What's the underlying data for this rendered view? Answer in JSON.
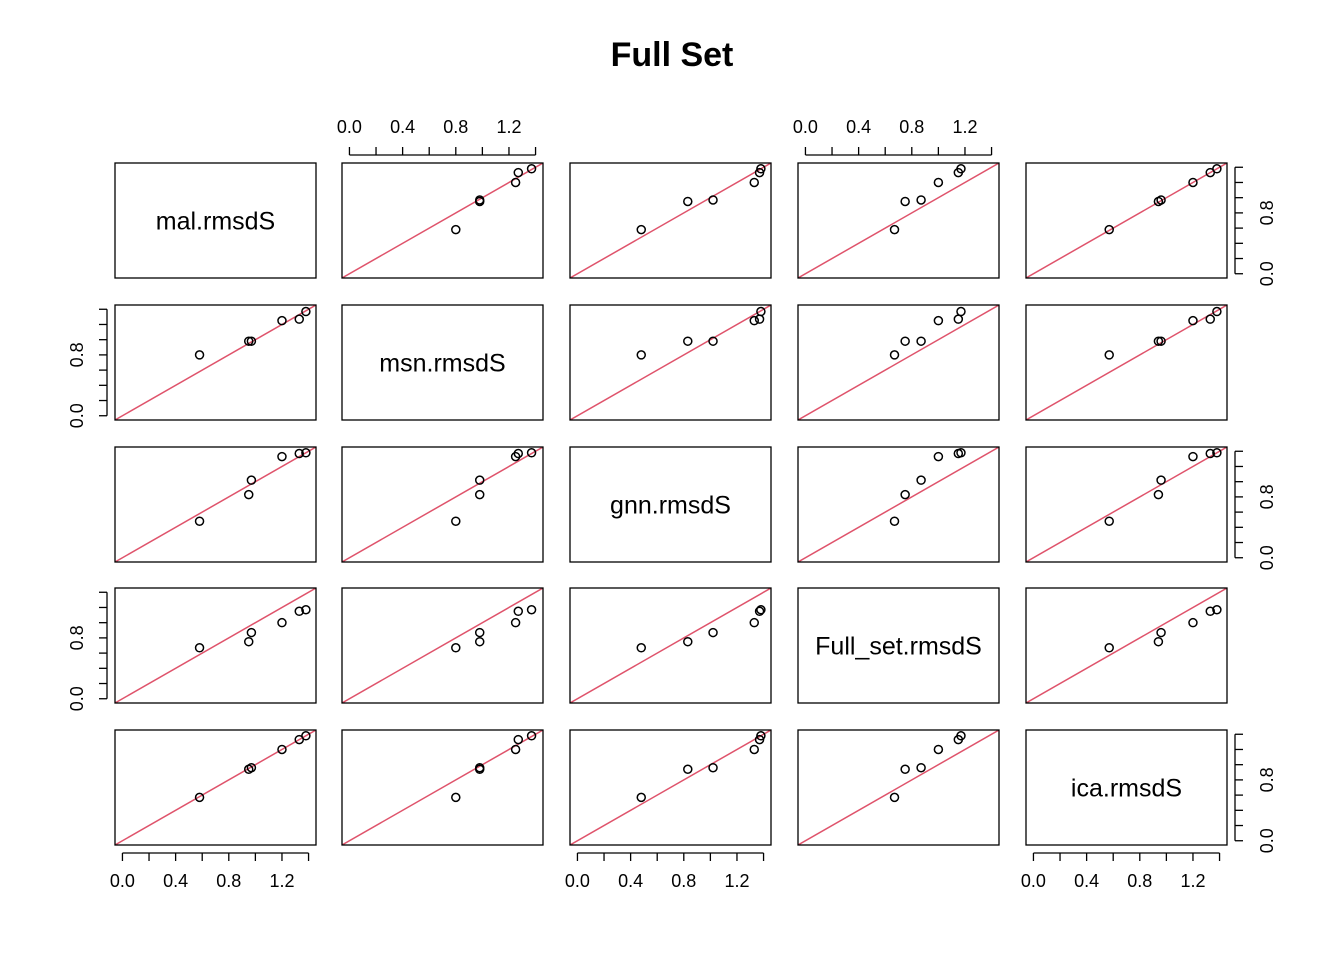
{
  "chart_data": {
    "type": "scatter",
    "title": "Full Set",
    "variables": [
      "mal.rmsdS",
      "msn.rmsdS",
      "gnn.rmsdS",
      "Full_set.rmsdS",
      "ica.rmsdS"
    ],
    "axis_ticks": [
      "0.0",
      "0.4",
      "0.8",
      "1.2"
    ],
    "x_axis_ticks": [
      "0.0",
      "0.4",
      "0.8",
      "1.2"
    ],
    "y_axis_ticks": [
      "0.0",
      "0.8"
    ],
    "axis_range": [
      0.0,
      1.4
    ],
    "reference_line": "y = x",
    "points": {
      "mal.rmsdS": [
        0.58,
        0.95,
        0.97,
        1.2,
        1.33,
        1.38
      ],
      "msn.rmsdS": [
        0.8,
        0.98,
        0.98,
        1.25,
        1.27,
        1.37
      ],
      "gnn.rmsdS": [
        0.48,
        0.83,
        1.02,
        1.33,
        1.37,
        1.38
      ],
      "Full_set.rmsdS": [
        0.67,
        0.75,
        0.87,
        1.0,
        1.15,
        1.17
      ],
      "ica.rmsdS": [
        0.57,
        0.94,
        0.96,
        1.2,
        1.33,
        1.38
      ]
    }
  },
  "colors": {
    "points": "#000000",
    "reference_line": "#DF536B",
    "axes": "#000000"
  }
}
